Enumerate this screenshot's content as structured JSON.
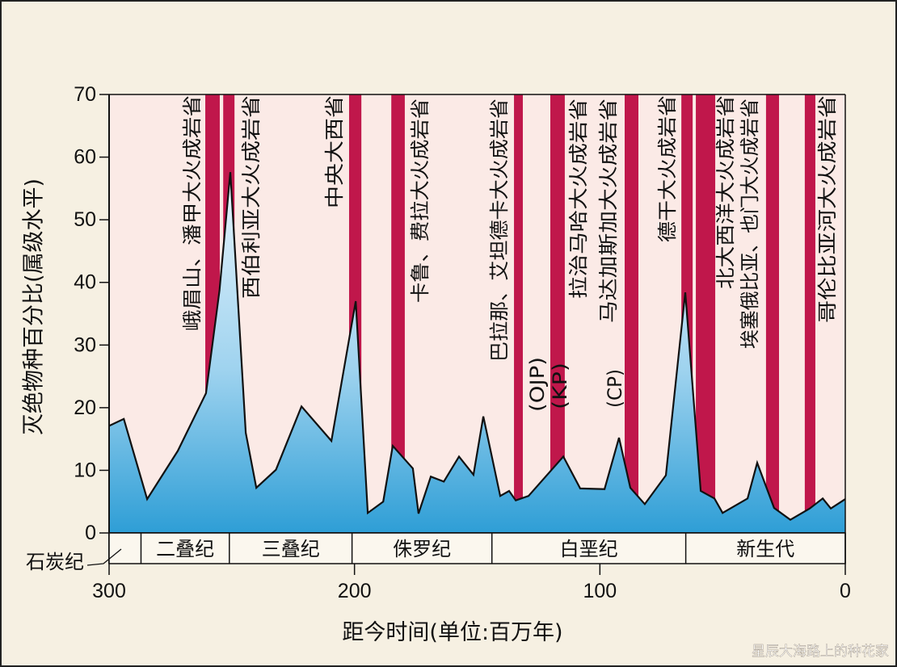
{
  "chart_data": {
    "type": "area",
    "title": "",
    "xlabel": "距今时间(单位:百万年)",
    "ylabel": "灭绝物种百分比(属级水平)",
    "xlim": [
      300,
      0
    ],
    "ylim": [
      0,
      70
    ],
    "x_ticks": [
      300,
      200,
      100,
      0
    ],
    "y_ticks": [
      0,
      10,
      20,
      30,
      40,
      50,
      60,
      70
    ],
    "grid": false,
    "series": [
      {
        "x": [
          300,
          294,
          284.5,
          272,
          260.5,
          255,
          250.6,
          244.3,
          240,
          232,
          221.6,
          209.4,
          199.5,
          194.6,
          188.3,
          184.4,
          176.2,
          173.9,
          168.9,
          163.6,
          157.4,
          151.5,
          147.5,
          140.6,
          137,
          134.3,
          129.1,
          114.9,
          108,
          98.1,
          92.2,
          87.6,
          81.7,
          73.1,
          65.2,
          58.9,
          53.3,
          50,
          39.8,
          35.9,
          29,
          22.4,
          14.5,
          9.2,
          5.9,
          0
        ],
        "y": [
          17.1,
          18.2,
          5.4,
          13.1,
          22.3,
          38.7,
          57.6,
          16,
          7.2,
          10.1,
          20.2,
          14.7,
          37,
          3.2,
          5,
          13.9,
          10.3,
          3.1,
          9,
          8.2,
          12.2,
          9.3,
          18.6,
          5.9,
          6.7,
          5.2,
          5.9,
          12.2,
          7.1,
          7,
          15.2,
          7.2,
          4.6,
          9.2,
          38.4,
          6.7,
          5.5,
          3.2,
          5.5,
          11.2,
          4,
          2.1,
          3.9,
          5.5,
          3.9,
          5.4
        ]
      }
    ],
    "lip_events": [
      {
        "start": 260.8,
        "end": 254.9
      },
      {
        "start": 253.5,
        "end": 248.9
      },
      {
        "start": 202.2,
        "end": 197.2
      },
      {
        "start": 185,
        "end": 179.5
      },
      {
        "start": 135,
        "end": 131.4
      },
      {
        "start": 120.2,
        "end": 114.3
      },
      {
        "start": 89.9,
        "end": 84.3
      },
      {
        "start": 66.8,
        "end": 62.2
      },
      {
        "start": 60.9,
        "end": 53
      },
      {
        "start": 32.3,
        "end": 27
      },
      {
        "start": 16.5,
        "end": 12.2
      }
    ],
    "annotations": [
      "峨眉山、潘甲大火成岩省",
      "西伯利亚大火成岩省",
      "中央大西省",
      "卡鲁、费拉大火成岩省",
      "巴拉那、艾坦德卡大火成岩省",
      "(OJP)",
      "(KP)",
      "拉治马哈大火成岩省",
      "马达加斯加大火成岩省",
      "(CP)",
      "德干大火成岩省",
      "北大西洋大火成岩省",
      "埃塞俄比亚、也门大火成岩省",
      "哥伦比亚河大火成岩省"
    ],
    "periods": [
      {
        "name": "二叠纪",
        "start": 287,
        "end": 251
      },
      {
        "name": "三叠纪",
        "start": 251,
        "end": 201
      },
      {
        "name": "侏罗纪",
        "start": 201,
        "end": 144
      },
      {
        "name": "白垩纪",
        "start": 144,
        "end": 65
      },
      {
        "name": "新生代",
        "start": 65,
        "end": 0
      }
    ],
    "carboniferous_label": "石炭纪",
    "colors": {
      "lip_bar": "#c0174b",
      "area_top": "#e9f5fc",
      "area_bottom": "#2e9ed6",
      "plot_bg": "#fbeae6",
      "kp_text": "#f4a6b8"
    }
  },
  "watermark": "星辰大海路上的种花家"
}
